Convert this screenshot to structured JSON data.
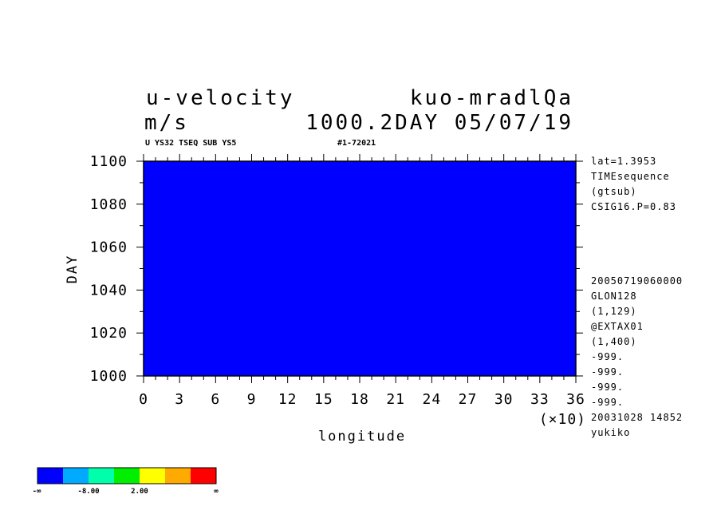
{
  "chart_data": {
    "type": "heatmap",
    "title": "u-velocity",
    "units": "m/s",
    "run_name": "kuo-mradlQa",
    "time_label": "1000.2DAY 05/07/19",
    "subtitle_left": "U YS32 TSEQ SUB YS5",
    "subtitle_right": "#1-72021",
    "xlabel": "longitude",
    "ylabel": "DAY",
    "x_multiplier_label": "(×10)",
    "xlim": [
      0,
      36
    ],
    "ylim": [
      1000,
      1100
    ],
    "x_ticks": [
      "0",
      "3",
      "6",
      "9",
      "12",
      "15",
      "18",
      "21",
      "24",
      "27",
      "30",
      "33",
      "36"
    ],
    "y_ticks": [
      "1000",
      "1020",
      "1040",
      "1060",
      "1080",
      "1100"
    ],
    "info_top": [
      "lat=1.3953",
      "TIMEsequence",
      "(gtsub)",
      "CSIG16.P=0.83"
    ],
    "info_bottom": [
      "20050719060000",
      "GLON128",
      "(1,129)",
      "@EXTAX01",
      "(1,400)",
      "-999.",
      "-999.",
      "-999.",
      "-999.",
      "20031028  14852",
      "yukiko"
    ],
    "colorbar": {
      "colors": [
        "#0000ff",
        "#00aaff",
        "#00ffaa",
        "#00ee00",
        "#ffff00",
        "#ffaa00",
        "#ff0000"
      ],
      "labels": [
        "-∞",
        "-8.00",
        "2.00",
        "∞"
      ]
    }
  }
}
